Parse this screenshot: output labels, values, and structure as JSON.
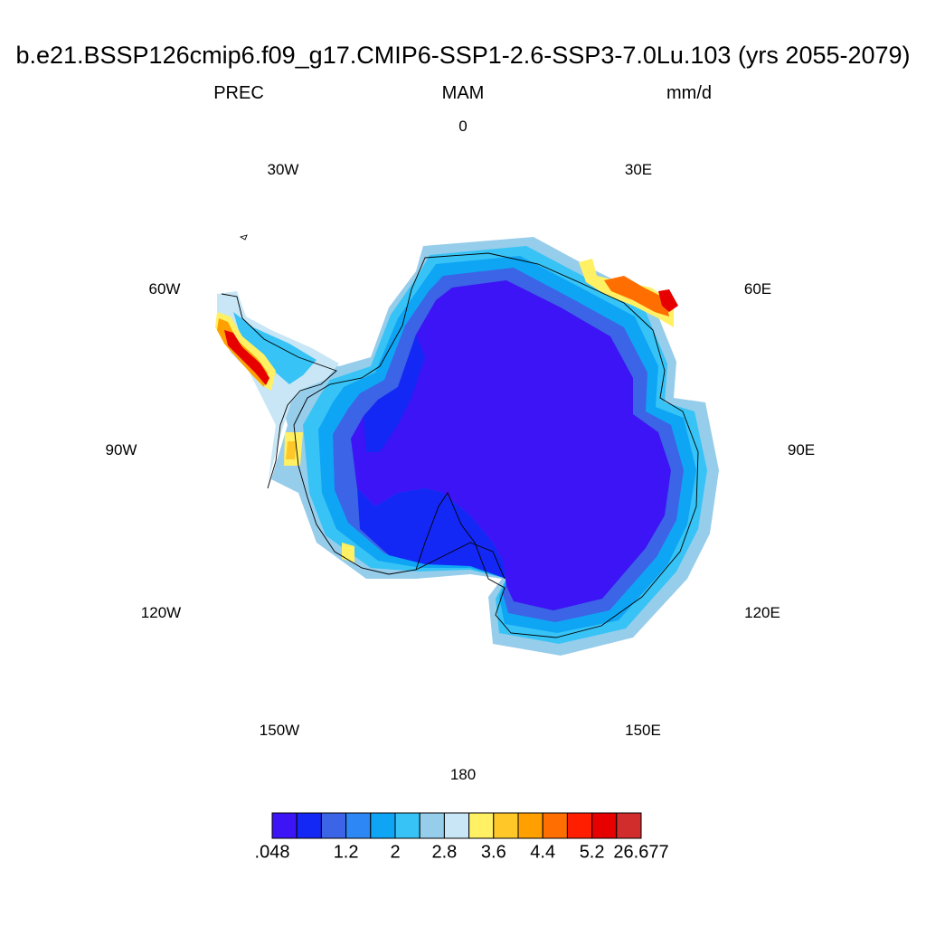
{
  "title": "b.e21.BSSP126cmip6.f09_g17.CMIP6-SSP1-2.6-SSP3-7.0Lu.103 (yrs 2055-2079)",
  "variable": "PREC",
  "season": "MAM",
  "units": "mm/d",
  "longitude_labels": {
    "lon_0": "0",
    "lon_30e": "30E",
    "lon_60e": "60E",
    "lon_90e": "90E",
    "lon_120e": "120E",
    "lon_150e": "150E",
    "lon_180": "180",
    "lon_150w": "150W",
    "lon_120w": "120W",
    "lon_90w": "90W",
    "lon_60w": "60W",
    "lon_30w": "30W"
  },
  "colorbar": {
    "colors": [
      "#3c14f5",
      "#1428f5",
      "#3c64e6",
      "#2d87f5",
      "#0fa5f5",
      "#37c3f5",
      "#96cdeb",
      "#c8e6f5",
      "#fff064",
      "#ffc828",
      "#ffa000",
      "#ff6e00",
      "#ff1e00",
      "#e60000",
      "#d22d2d"
    ],
    "labels": [
      {
        "text": ".048",
        "boundary": 0
      },
      {
        "text": "1.2",
        "boundary": 3
      },
      {
        "text": "2",
        "boundary": 5
      },
      {
        "text": "2.8",
        "boundary": 7
      },
      {
        "text": "3.6",
        "boundary": 9
      },
      {
        "text": "4.4",
        "boundary": 11
      },
      {
        "text": "5.2",
        "boundary": 13
      },
      {
        "text": "26.677",
        "boundary": 15
      }
    ]
  }
}
